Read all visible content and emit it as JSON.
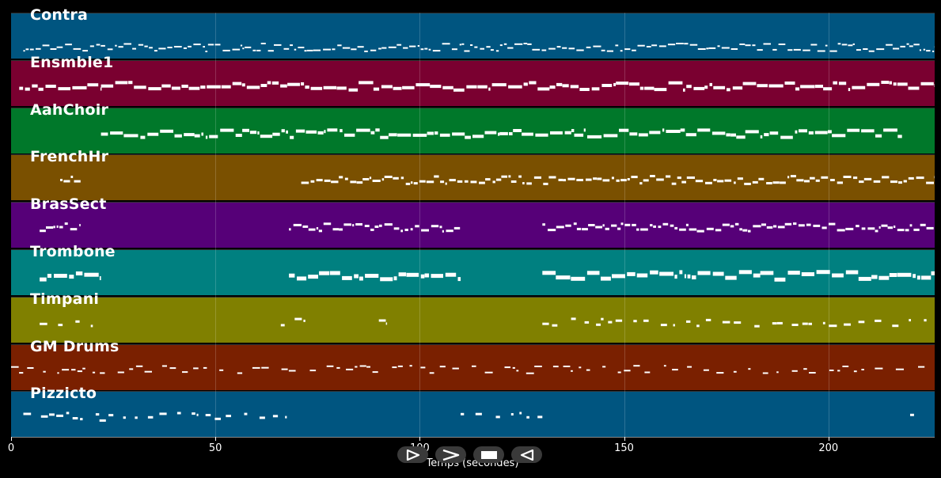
{
  "tracks": [
    {
      "name": "Contra",
      "color": "#005580"
    },
    {
      "name": "Ensmble1",
      "color": "#7a0030"
    },
    {
      "name": "AahChoir",
      "color": "#00782a"
    },
    {
      "name": "FrenchHr",
      "color": "#7a5000"
    },
    {
      "name": "BrasSect",
      "color": "#560078"
    },
    {
      "name": "Trombone",
      "color": "#008080"
    },
    {
      "name": "Timpani",
      "color": "#808000"
    },
    {
      "name": "GM Drums",
      "color": "#7a2000"
    },
    {
      "name": "Pizzicto",
      "color": "#005580"
    }
  ],
  "axis": {
    "range": [
      0,
      226
    ],
    "ticks": [
      "0",
      "50",
      "100",
      "150",
      "200"
    ],
    "tick_values": [
      0,
      50,
      100,
      150,
      200
    ],
    "xlabel": "Temps (secondes)"
  },
  "controls": [
    {
      "name": "play-button",
      "icon": "play-outline-icon"
    },
    {
      "name": "forward-button",
      "icon": "chevron-right-icon"
    },
    {
      "name": "stop-button",
      "icon": "stop-icon"
    },
    {
      "name": "rewind-button",
      "icon": "rewind-icon"
    }
  ]
}
